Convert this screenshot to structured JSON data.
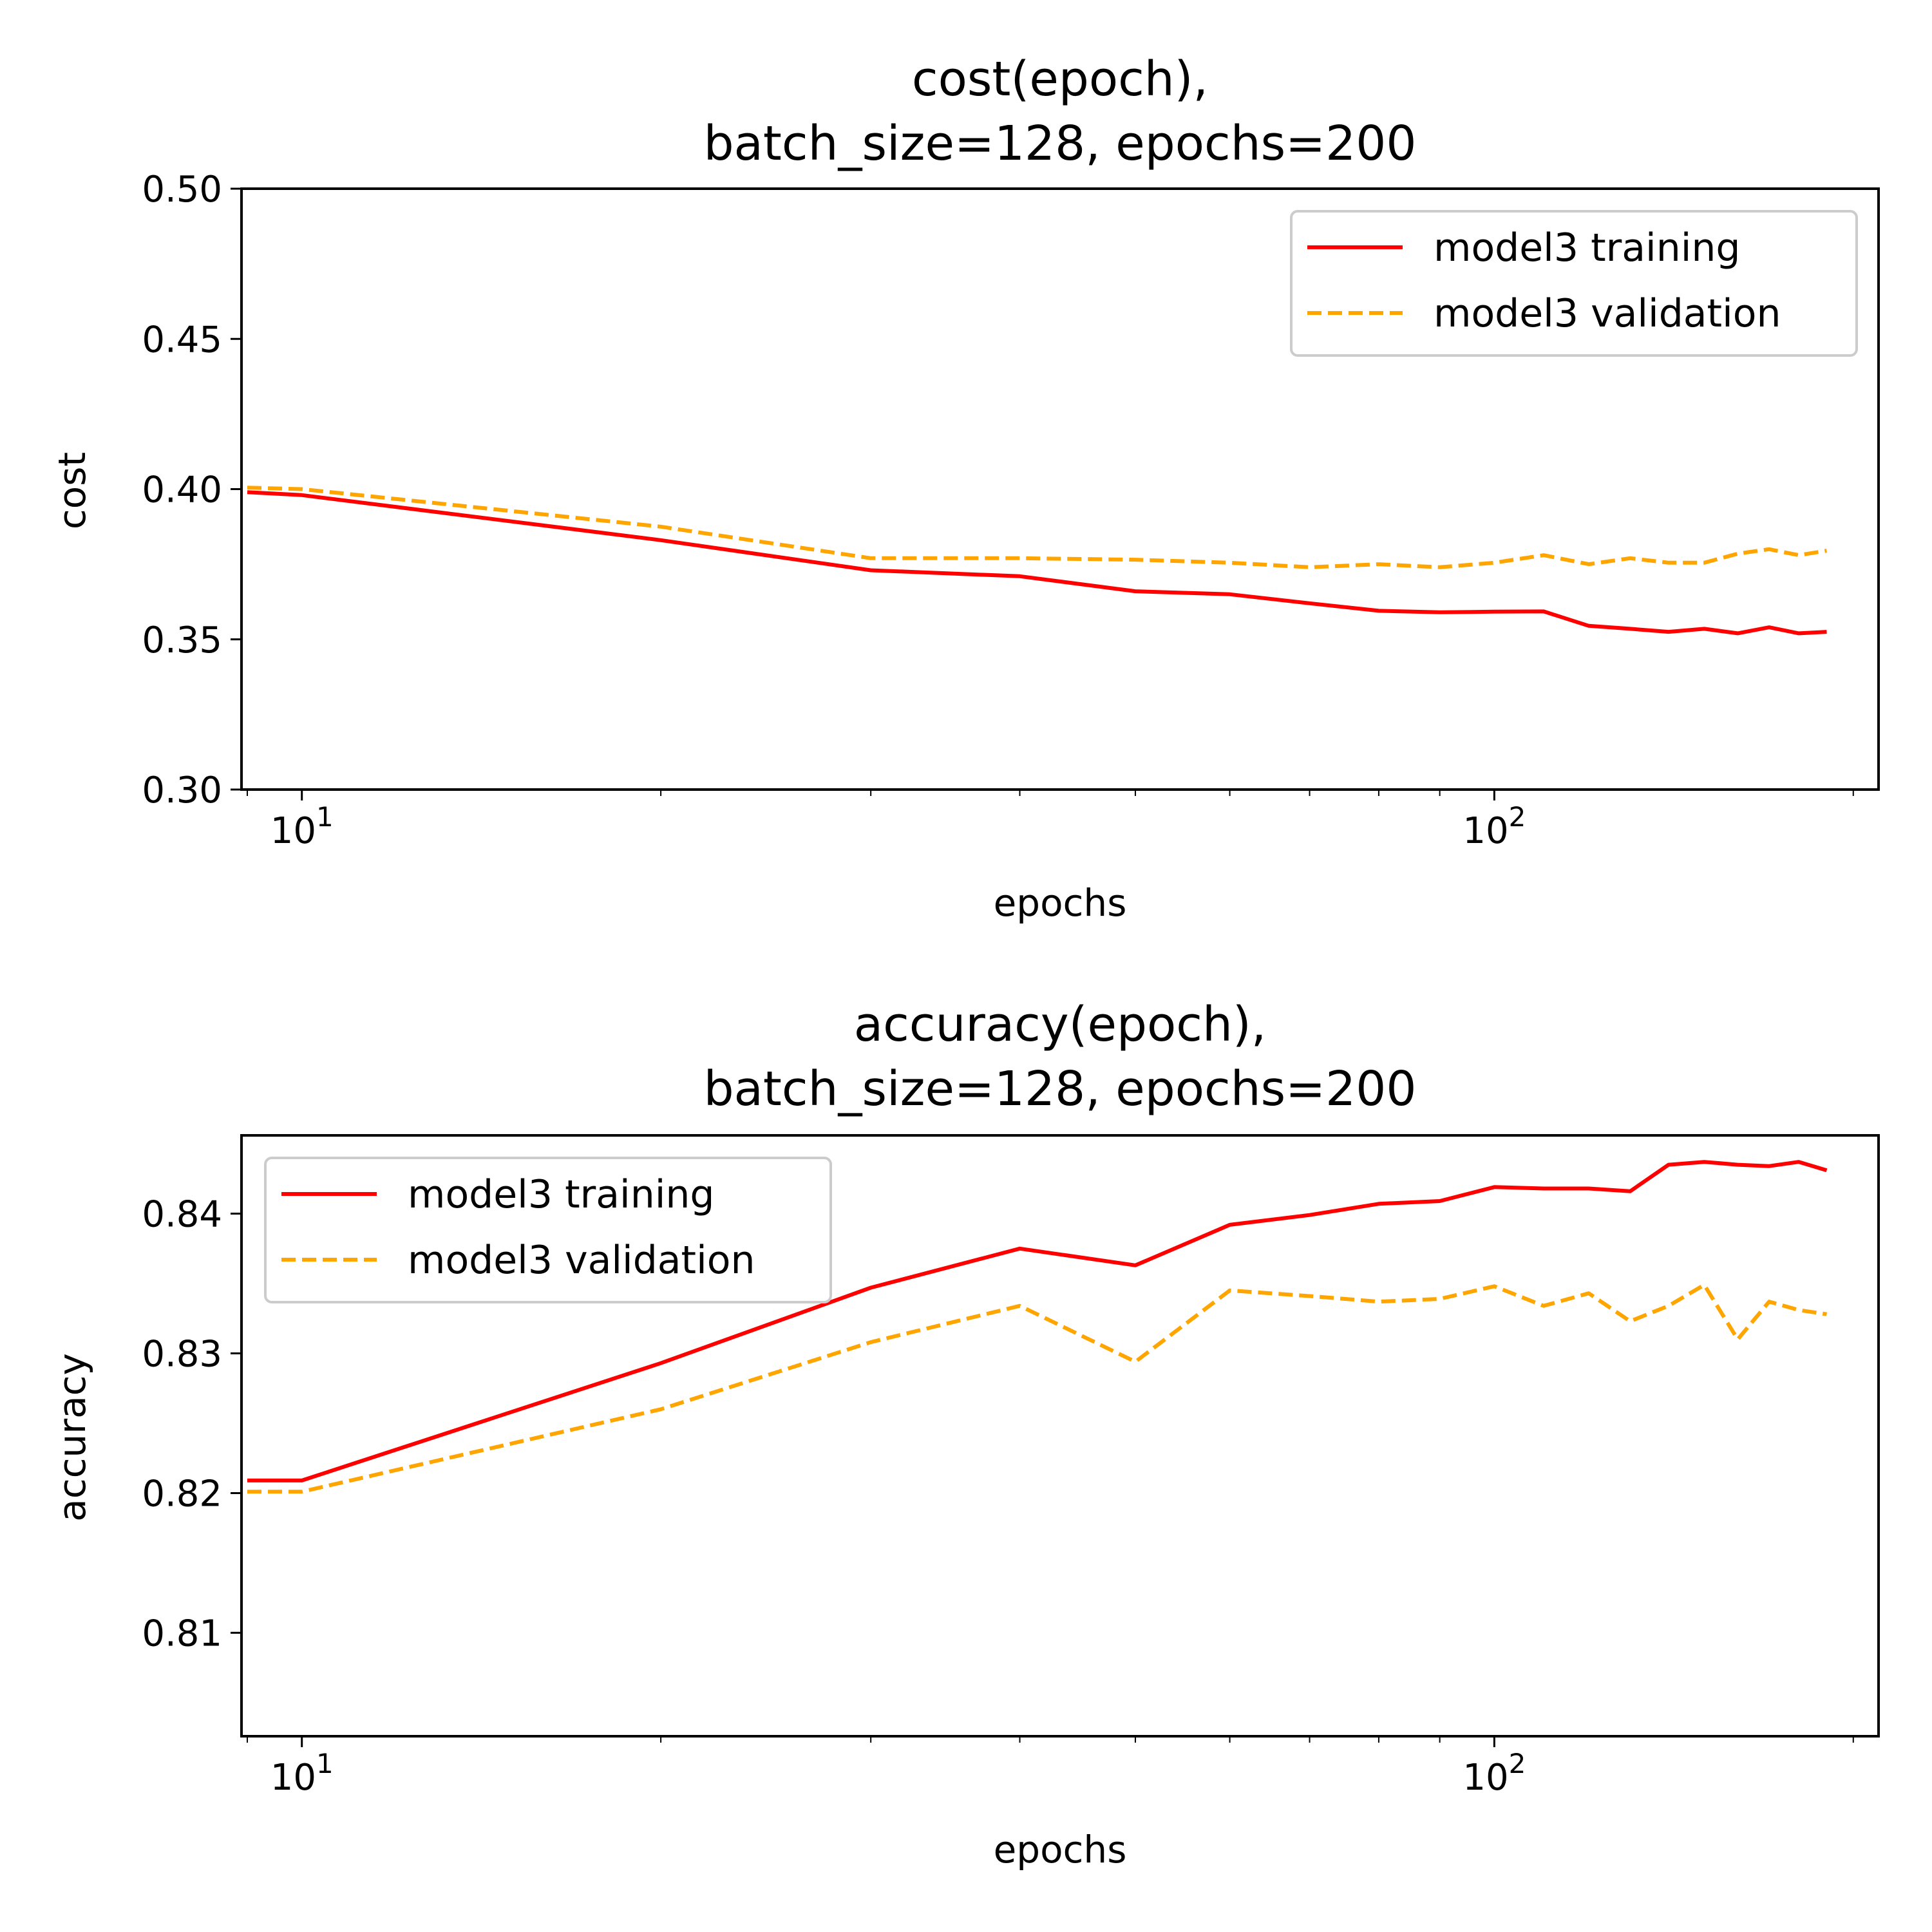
{
  "chart_data": [
    {
      "type": "line",
      "title": [
        "cost(epoch),",
        "batch_size=128, epochs=200"
      ],
      "xlabel": "epochs",
      "ylabel": "cost",
      "xscale": "log",
      "xlim": [
        8.9,
        210
      ],
      "ylim": [
        0.3,
        0.5
      ],
      "yticks": [
        0.3,
        0.35,
        0.4,
        0.45,
        0.5
      ],
      "ytick_labels": [
        "0.30",
        "0.35",
        "0.40",
        "0.45",
        "0.50"
      ],
      "xticks_major": [
        {
          "base": "10",
          "exp": "1",
          "value": 10
        },
        {
          "base": "10",
          "exp": "2",
          "value": 100
        }
      ],
      "legend_loc": "upper right",
      "grid": false,
      "series": [
        {
          "name": "model3 training",
          "color": "#ff0000",
          "style": "solid",
          "x": [
            9,
            10,
            20,
            30,
            40,
            50,
            60,
            70,
            80,
            90,
            100,
            110,
            120,
            130,
            140,
            150,
            160,
            170,
            180,
            190
          ],
          "y": [
            0.399,
            0.398,
            0.383,
            0.373,
            0.371,
            0.366,
            0.365,
            0.362,
            0.3595,
            0.359,
            0.3592,
            0.3593,
            0.3545,
            0.3535,
            0.3525,
            0.3535,
            0.352,
            0.354,
            0.352,
            0.3525
          ]
        },
        {
          "name": "model3 validation",
          "color": "#ffa500",
          "style": "dashed",
          "x": [
            9,
            10,
            20,
            30,
            40,
            50,
            60,
            70,
            80,
            90,
            100,
            110,
            120,
            130,
            140,
            150,
            160,
            170,
            180,
            190
          ],
          "y": [
            0.4005,
            0.4,
            0.3875,
            0.377,
            0.377,
            0.3765,
            0.3755,
            0.374,
            0.375,
            0.374,
            0.3755,
            0.378,
            0.375,
            0.377,
            0.3755,
            0.3755,
            0.3785,
            0.38,
            0.378,
            0.3795
          ]
        }
      ]
    },
    {
      "type": "line",
      "title": [
        "accuracy(epoch),",
        "batch_size=128, epochs=200"
      ],
      "xlabel": "epochs",
      "ylabel": "accuracy",
      "xscale": "log",
      "xlim": [
        8.9,
        210
      ],
      "ylim": [
        0.8026,
        0.8456
      ],
      "yticks": [
        0.81,
        0.82,
        0.83,
        0.84
      ],
      "ytick_labels": [
        "0.81",
        "0.82",
        "0.83",
        "0.84"
      ],
      "xticks_major": [
        {
          "base": "10",
          "exp": "1",
          "value": 10
        },
        {
          "base": "10",
          "exp": "2",
          "value": 100
        }
      ],
      "legend_loc": "upper left",
      "grid": false,
      "series": [
        {
          "name": "model3 training",
          "color": "#ff0000",
          "style": "solid",
          "x": [
            9,
            10,
            20,
            30,
            40,
            50,
            60,
            70,
            80,
            90,
            100,
            110,
            120,
            130,
            140,
            150,
            160,
            170,
            180,
            190
          ],
          "y": [
            0.8209,
            0.8209,
            0.8293,
            0.8347,
            0.8375,
            0.8363,
            0.8392,
            0.8399,
            0.8407,
            0.8409,
            0.8419,
            0.8418,
            0.8418,
            0.8416,
            0.8435,
            0.8437,
            0.8435,
            0.8434,
            0.8437,
            0.8431
          ]
        },
        {
          "name": "model3 validation",
          "color": "#ffa500",
          "style": "dashed",
          "x": [
            9,
            10,
            20,
            30,
            40,
            50,
            60,
            70,
            80,
            90,
            100,
            110,
            120,
            130,
            140,
            150,
            160,
            170,
            180,
            190
          ],
          "y": [
            0.8201,
            0.8201,
            0.826,
            0.8308,
            0.8334,
            0.8294,
            0.8345,
            0.8341,
            0.8337,
            0.8339,
            0.8348,
            0.8334,
            0.8343,
            0.8323,
            0.8334,
            0.8349,
            0.831,
            0.8337,
            0.8331,
            0.8328
          ]
        }
      ]
    }
  ]
}
